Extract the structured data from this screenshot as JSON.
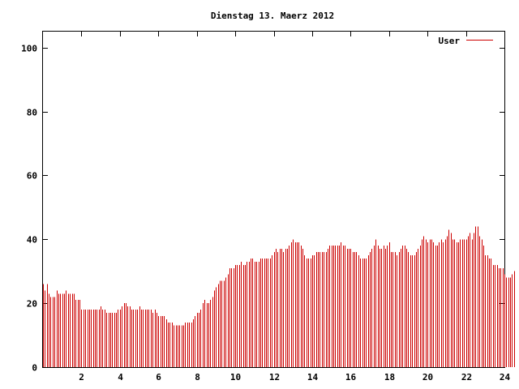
{
  "chart_data": {
    "type": "bar",
    "title": "Dienstag 13. Maerz 2012",
    "xlabel": "",
    "ylabel": "",
    "xlim": [
      0,
      24
    ],
    "ylim": [
      0,
      105
    ],
    "xticks": [
      2,
      4,
      6,
      8,
      10,
      12,
      14,
      16,
      18,
      20,
      22,
      24
    ],
    "yticks": [
      0,
      20,
      40,
      60,
      80,
      100
    ],
    "grid": false,
    "legend_position": "top-right",
    "color": "#cc0000",
    "series": [
      {
        "name": "User",
        "x_step_hours": 0.1,
        "values": [
          26,
          24,
          26,
          23,
          22,
          22,
          22,
          24,
          23,
          23,
          23,
          23,
          24,
          23,
          23,
          23,
          23,
          21,
          21,
          21,
          18,
          18,
          18,
          18,
          18,
          18,
          18,
          18,
          18,
          18,
          19,
          18,
          18,
          17,
          17,
          17,
          17,
          17,
          17,
          18,
          18,
          19,
          20,
          20,
          19,
          19,
          18,
          18,
          18,
          18,
          19,
          18,
          18,
          18,
          18,
          18,
          18,
          17,
          18,
          17,
          16,
          16,
          16,
          16,
          15,
          14,
          14,
          14,
          13,
          13,
          13,
          13,
          13,
          13,
          14,
          14,
          14,
          14,
          15,
          16,
          17,
          17,
          18,
          20,
          21,
          20,
          20,
          21,
          22,
          24,
          25,
          26,
          27,
          27,
          27,
          28,
          29,
          31,
          31,
          31,
          32,
          32,
          32,
          33,
          32,
          32,
          33,
          33,
          34,
          34,
          33,
          33,
          33,
          34,
          34,
          34,
          34,
          34,
          34,
          35,
          36,
          37,
          36,
          37,
          37,
          36,
          37,
          37,
          38,
          39,
          40,
          39,
          39,
          39,
          38,
          37,
          35,
          34,
          34,
          34,
          35,
          35,
          36,
          36,
          36,
          36,
          36,
          36,
          37,
          38,
          38,
          38,
          38,
          38,
          38,
          39,
          38,
          38,
          37,
          37,
          37,
          36,
          36,
          36,
          35,
          34,
          34,
          34,
          34,
          35,
          36,
          37,
          38,
          40,
          38,
          37,
          37,
          38,
          37,
          38,
          39,
          36,
          36,
          36,
          35,
          36,
          37,
          38,
          38,
          37,
          36,
          35,
          35,
          35,
          36,
          37,
          38,
          40,
          41,
          40,
          39,
          40,
          40,
          39,
          38,
          38,
          39,
          40,
          39,
          40,
          41,
          43,
          42,
          40,
          40,
          39,
          39,
          40,
          40,
          40,
          40,
          41,
          42,
          40,
          42,
          44,
          44,
          41,
          40,
          38,
          35,
          35,
          34,
          34,
          32,
          32,
          32,
          31,
          31,
          31,
          29,
          28,
          28,
          28,
          29,
          30
        ]
      }
    ]
  }
}
